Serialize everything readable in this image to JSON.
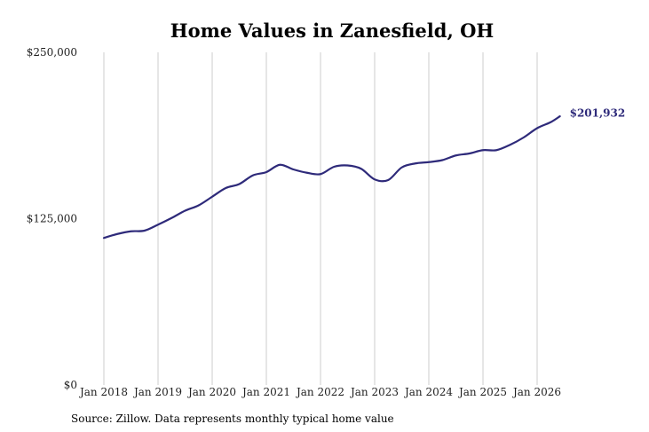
{
  "chart_data": {
    "type": "line",
    "title": "Home Values in Zanesfield, OH",
    "xlabel": "",
    "ylabel": "",
    "ylim": [
      0,
      250000
    ],
    "y_ticks": [
      {
        "value": 0,
        "label": "$0"
      },
      {
        "value": 125000,
        "label": "$125,000"
      },
      {
        "value": 250000,
        "label": "$250,000"
      }
    ],
    "x_ticks": [
      {
        "value": 2018.0,
        "label": "Jan 2018"
      },
      {
        "value": 2019.0,
        "label": "Jan 2019"
      },
      {
        "value": 2020.0,
        "label": "Jan 2020"
      },
      {
        "value": 2021.0,
        "label": "Jan 2021"
      },
      {
        "value": 2022.0,
        "label": "Jan 2022"
      },
      {
        "value": 2023.0,
        "label": "Jan 2023"
      },
      {
        "value": 2024.0,
        "label": "Jan 2024"
      },
      {
        "value": 2025.0,
        "label": "Jan 2025"
      },
      {
        "value": 2026.0,
        "label": "Jan 2026"
      }
    ],
    "grid": "vertical",
    "line_color": "#2e2a7a",
    "end_label": "$201,932",
    "x": [
      2018.0,
      2018.25,
      2018.5,
      2018.75,
      2019.0,
      2019.25,
      2019.5,
      2019.75,
      2020.0,
      2020.25,
      2020.5,
      2020.75,
      2021.0,
      2021.25,
      2021.5,
      2021.75,
      2022.0,
      2022.25,
      2022.5,
      2022.75,
      2023.0,
      2023.25,
      2023.5,
      2023.75,
      2024.0,
      2024.25,
      2024.5,
      2024.75,
      2025.0,
      2025.25,
      2025.5,
      2025.75,
      2026.0,
      2026.25,
      2026.42
    ],
    "values": [
      110500,
      113500,
      115500,
      116000,
      120500,
      125500,
      131000,
      135000,
      141500,
      148000,
      151000,
      157500,
      160000,
      165500,
      162000,
      159500,
      158500,
      164000,
      165000,
      162500,
      154500,
      154000,
      163500,
      166500,
      167500,
      169000,
      172500,
      174000,
      176500,
      176500,
      180500,
      186000,
      193000,
      197500,
      201932
    ]
  },
  "source_note": "Source: Zillow. Data represents monthly typical home value"
}
